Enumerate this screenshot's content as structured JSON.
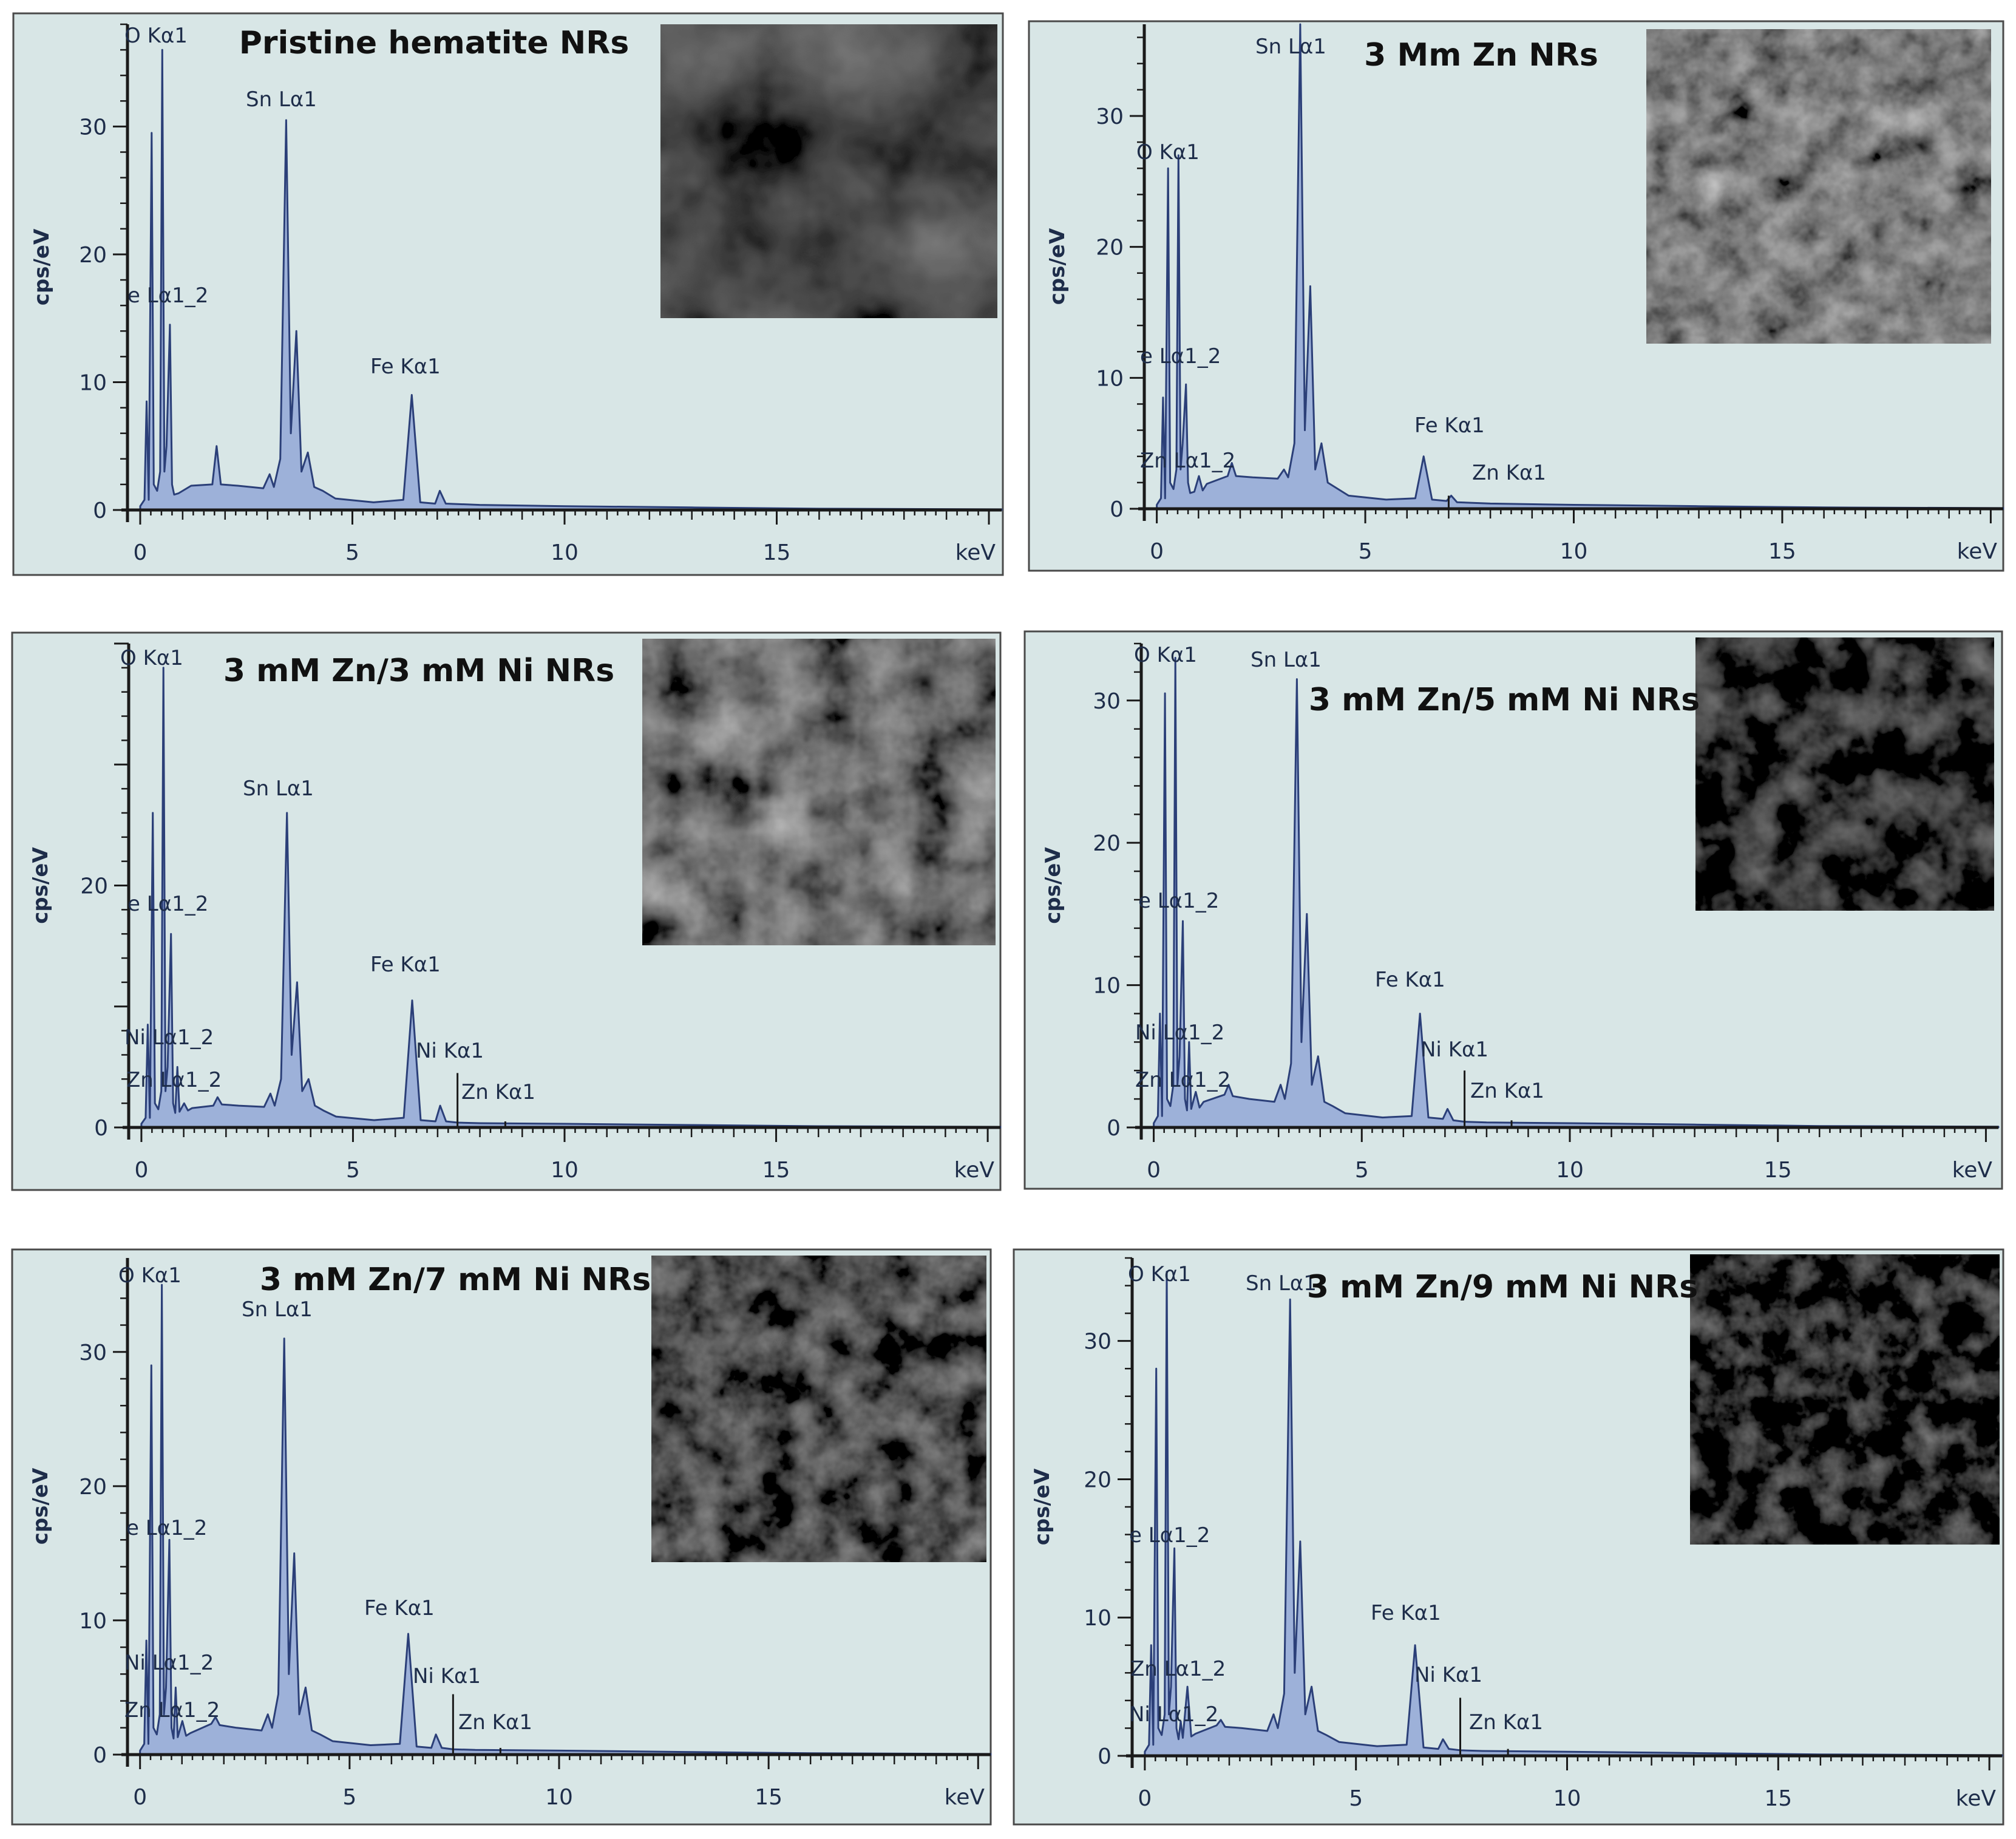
{
  "chart_data": [
    {
      "type": "area",
      "title": "Pristine hematite NRs",
      "ylabel": "cps/eV",
      "x_unit": "keV",
      "xlim": [
        -0.3,
        20.3
      ],
      "ylim": [
        0,
        38
      ],
      "xticks": [
        0,
        5,
        10,
        15
      ],
      "yticks": [
        0,
        10,
        20,
        30
      ],
      "inset": "sem-micrograph",
      "peaks": [
        {
          "label": "O Kα1",
          "energy": 0.52,
          "value": 36
        },
        {
          "label": "Sn Lα1",
          "energy": 3.44,
          "value": 30.5
        },
        {
          "label": "e Lα1_2",
          "energy": 0.7,
          "value": 14.5
        },
        {
          "label": "Fe Kα1",
          "energy": 6.4,
          "value": 9
        }
      ],
      "spectrum": {
        "energy": [
          0,
          0.1,
          0.15,
          0.2,
          0.27,
          0.32,
          0.4,
          0.47,
          0.52,
          0.57,
          0.62,
          0.7,
          0.75,
          0.8,
          0.9,
          1.2,
          1.7,
          1.8,
          1.9,
          2.3,
          2.9,
          3.05,
          3.15,
          3.3,
          3.44,
          3.55,
          3.68,
          3.8,
          3.95,
          4.1,
          4.3,
          4.6,
          5.5,
          6.2,
          6.4,
          6.6,
          6.95,
          7.06,
          7.2,
          8,
          10,
          13,
          16,
          20.3
        ],
        "counts": [
          0.3,
          0.8,
          8.5,
          0.8,
          29.5,
          2,
          1.5,
          3,
          36,
          3,
          5,
          14.5,
          2,
          1.2,
          1.3,
          1.9,
          2,
          5,
          2,
          1.9,
          1.7,
          2.8,
          1.8,
          4,
          30.5,
          6,
          14,
          3,
          4.5,
          1.8,
          1.5,
          0.9,
          0.6,
          0.8,
          9,
          0.6,
          0.5,
          1.5,
          0.5,
          0.4,
          0.3,
          0.2,
          0.1,
          0.05
        ]
      }
    },
    {
      "type": "area",
      "title": "3 Mm Zn NRs",
      "ylabel": "cps/eV",
      "x_unit": "keV",
      "xlim": [
        -0.3,
        20.3
      ],
      "ylim": [
        0,
        37
      ],
      "xticks": [
        0,
        5,
        10,
        15
      ],
      "yticks": [
        0,
        10,
        20,
        30
      ],
      "inset": "sem-micrograph",
      "peaks": [
        {
          "label": "O Kα1",
          "energy": 0.52,
          "value": 27
        },
        {
          "label": "Sn Lα1",
          "energy": 3.44,
          "value": 37
        },
        {
          "label": "e Lα1_2",
          "energy": 0.7,
          "value": 9.5
        },
        {
          "label": "Zn Lα1_2",
          "energy": 1.01,
          "value": 2.5
        },
        {
          "label": "Fe Kα1",
          "energy": 6.4,
          "value": 4
        },
        {
          "label": "Zn Kα1",
          "energy": 7.0,
          "value": 1
        }
      ],
      "spectrum": {
        "energy": [
          0,
          0.1,
          0.15,
          0.2,
          0.27,
          0.32,
          0.4,
          0.47,
          0.52,
          0.57,
          0.62,
          0.7,
          0.75,
          0.8,
          0.9,
          1.01,
          1.1,
          1.2,
          1.7,
          1.8,
          1.9,
          2.3,
          2.9,
          3.05,
          3.15,
          3.3,
          3.44,
          3.55,
          3.68,
          3.8,
          3.95,
          4.1,
          4.3,
          4.6,
          5.5,
          6.2,
          6.4,
          6.6,
          6.95,
          7.06,
          7.2,
          8,
          10,
          13,
          16,
          20.3
        ],
        "counts": [
          0.3,
          0.8,
          8.5,
          0.8,
          26,
          2,
          1.5,
          3,
          27,
          3,
          5,
          9.5,
          2,
          1.2,
          1.3,
          2.5,
          1.4,
          1.9,
          2.5,
          3.5,
          2.5,
          2.4,
          2.3,
          3,
          2.4,
          5,
          37,
          6,
          17,
          3,
          5,
          2,
          1.6,
          1,
          0.7,
          0.8,
          4,
          0.7,
          0.6,
          1,
          0.5,
          0.4,
          0.3,
          0.2,
          0.1,
          0.05
        ]
      }
    },
    {
      "type": "area",
      "title": "3 mM Zn/3 mM Ni NRs",
      "ylabel": "cps/eV",
      "x_unit": "keV",
      "xlim": [
        -0.3,
        20.3
      ],
      "ylim": [
        0,
        40
      ],
      "xticks": [
        0,
        5,
        10,
        15
      ],
      "yticks": [
        0,
        20
      ],
      "inset": "sem-micrograph",
      "peaks": [
        {
          "label": "O Kα1",
          "energy": 0.52,
          "value": 38
        },
        {
          "label": "Sn Lα1",
          "energy": 3.44,
          "value": 26
        },
        {
          "label": "e Lα1_2",
          "energy": 0.7,
          "value": 16
        },
        {
          "label": "Ni Lα1_2",
          "energy": 0.85,
          "value": 5
        },
        {
          "label": "Zn Lα1_2",
          "energy": 1.01,
          "value": 2
        },
        {
          "label": "Fe Kα1",
          "energy": 6.4,
          "value": 10.5
        },
        {
          "label": "Ni Kα1",
          "energy": 7.47,
          "value": 4.5
        },
        {
          "label": "Zn Kα1",
          "energy": 8.6,
          "value": 0.5
        }
      ],
      "spectrum": {
        "energy": [
          0,
          0.1,
          0.15,
          0.2,
          0.27,
          0.32,
          0.4,
          0.47,
          0.52,
          0.57,
          0.62,
          0.7,
          0.75,
          0.8,
          0.85,
          0.9,
          1.01,
          1.1,
          1.2,
          1.7,
          1.8,
          1.9,
          2.3,
          2.9,
          3.05,
          3.15,
          3.3,
          3.44,
          3.55,
          3.68,
          3.8,
          3.95,
          4.1,
          4.3,
          4.6,
          5.5,
          6.2,
          6.4,
          6.6,
          6.95,
          7.06,
          7.2,
          7.47,
          8,
          10,
          13,
          16,
          20.3
        ],
        "counts": [
          0.3,
          0.8,
          8.5,
          0.8,
          26,
          2,
          1.5,
          3,
          38,
          3,
          5,
          16,
          2,
          1.2,
          5,
          1.3,
          2,
          1.4,
          1.6,
          1.8,
          2.5,
          1.9,
          1.8,
          1.7,
          2.8,
          1.8,
          4,
          26,
          6,
          12,
          3,
          4,
          1.8,
          1.4,
          0.9,
          0.6,
          0.8,
          10.5,
          0.6,
          0.5,
          1.8,
          0.5,
          0.4,
          0.35,
          0.3,
          0.2,
          0.1,
          0.05
        ]
      }
    },
    {
      "type": "area",
      "title": "3 mM Zn/5 mM Ni NRs",
      "ylabel": "cps/eV",
      "x_unit": "keV",
      "xlim": [
        -0.3,
        20.3
      ],
      "ylim": [
        0,
        34
      ],
      "xticks": [
        0,
        5,
        10,
        15
      ],
      "yticks": [
        0,
        10,
        20,
        30
      ],
      "inset": "sem-micrograph",
      "peaks": [
        {
          "label": "O Kα1",
          "energy": 0.52,
          "value": 33
        },
        {
          "label": "Sn Lα1",
          "energy": 3.44,
          "value": 31.5
        },
        {
          "label": "e Lα1_2",
          "energy": 0.7,
          "value": 14.5
        },
        {
          "label": "Ni Lα1_2",
          "energy": 0.85,
          "value": 6
        },
        {
          "label": "Zn Lα1_2",
          "energy": 1.01,
          "value": 2.5
        },
        {
          "label": "Fe Kα1",
          "energy": 6.4,
          "value": 8
        },
        {
          "label": "Ni Kα1",
          "energy": 7.47,
          "value": 4
        },
        {
          "label": "Zn Kα1",
          "energy": 8.6,
          "value": 0.5
        }
      ],
      "spectrum": {
        "energy": [
          0,
          0.1,
          0.15,
          0.2,
          0.27,
          0.32,
          0.4,
          0.47,
          0.52,
          0.57,
          0.62,
          0.7,
          0.75,
          0.8,
          0.85,
          0.9,
          1.01,
          1.1,
          1.2,
          1.7,
          1.8,
          1.9,
          2.3,
          2.9,
          3.05,
          3.15,
          3.3,
          3.44,
          3.55,
          3.68,
          3.8,
          3.95,
          4.1,
          4.3,
          4.6,
          5.5,
          6.2,
          6.4,
          6.6,
          6.95,
          7.06,
          7.2,
          7.47,
          8,
          10,
          13,
          16,
          20.3
        ],
        "counts": [
          0.3,
          0.8,
          8,
          0.8,
          30.5,
          2,
          1.5,
          3,
          33,
          3,
          5,
          14.5,
          2,
          1.2,
          6,
          1.3,
          2.5,
          1.4,
          1.8,
          2.3,
          3,
          2.2,
          2,
          1.8,
          3,
          2,
          4.5,
          31.5,
          6,
          15,
          3,
          5,
          1.8,
          1.5,
          1,
          0.7,
          0.8,
          8,
          0.7,
          0.6,
          1.3,
          0.5,
          0.4,
          0.35,
          0.3,
          0.2,
          0.1,
          0.05
        ]
      }
    },
    {
      "type": "area",
      "title": "3 mM Zn/7 mM Ni NRs",
      "ylabel": "cps/eV",
      "x_unit": "keV",
      "xlim": [
        -0.3,
        20.3
      ],
      "ylim": [
        0,
        37
      ],
      "xticks": [
        0,
        5,
        10,
        15
      ],
      "yticks": [
        0,
        10,
        20,
        30
      ],
      "inset": "sem-micrograph",
      "peaks": [
        {
          "label": "O Kα1",
          "energy": 0.52,
          "value": 35
        },
        {
          "label": "Sn Lα1",
          "energy": 3.44,
          "value": 31
        },
        {
          "label": "e Lα1_2",
          "energy": 0.7,
          "value": 16
        },
        {
          "label": "Ni Lα1_2",
          "energy": 0.85,
          "value": 5
        },
        {
          "label": "Zn Lα1_2",
          "energy": 1.01,
          "value": 2.5
        },
        {
          "label": "Fe Kα1",
          "energy": 6.4,
          "value": 9
        },
        {
          "label": "Ni Kα1",
          "energy": 7.47,
          "value": 4.5
        },
        {
          "label": "Zn Kα1",
          "energy": 8.6,
          "value": 0.5
        }
      ],
      "spectrum": {
        "energy": [
          0,
          0.1,
          0.15,
          0.2,
          0.27,
          0.32,
          0.4,
          0.47,
          0.52,
          0.57,
          0.62,
          0.7,
          0.75,
          0.8,
          0.85,
          0.9,
          1.01,
          1.1,
          1.2,
          1.7,
          1.8,
          1.9,
          2.3,
          2.9,
          3.05,
          3.15,
          3.3,
          3.44,
          3.55,
          3.68,
          3.8,
          3.95,
          4.1,
          4.3,
          4.6,
          5.5,
          6.2,
          6.4,
          6.6,
          6.95,
          7.06,
          7.2,
          7.47,
          8,
          10,
          13,
          16,
          20.3
        ],
        "counts": [
          0.3,
          0.8,
          8.5,
          0.8,
          29,
          2,
          1.5,
          3,
          35,
          3,
          5,
          16,
          2,
          1.2,
          5,
          1.3,
          2.5,
          1.4,
          1.6,
          2.3,
          2.8,
          2.2,
          2,
          1.8,
          3,
          2,
          4.5,
          31,
          6,
          15,
          3,
          5,
          1.8,
          1.5,
          1,
          0.7,
          0.8,
          9,
          0.6,
          0.5,
          1.5,
          0.5,
          0.4,
          0.35,
          0.3,
          0.2,
          0.1,
          0.05
        ]
      }
    },
    {
      "type": "area",
      "title": "3 mM Zn/9 mM Ni NRs",
      "ylabel": "cps/eV",
      "x_unit": "keV",
      "xlim": [
        -0.3,
        20.3
      ],
      "ylim": [
        0,
        36
      ],
      "xticks": [
        0,
        5,
        10,
        15
      ],
      "yticks": [
        0,
        10,
        20,
        30
      ],
      "inset": "sem-micrograph",
      "peaks": [
        {
          "label": "O Kα1",
          "energy": 0.52,
          "value": 35
        },
        {
          "label": "Sn Lα1",
          "energy": 3.44,
          "value": 33
        },
        {
          "label": "e Lα1_2",
          "energy": 0.7,
          "value": 15
        },
        {
          "label": "Zn Lα1_2",
          "energy": 1.01,
          "value": 5
        },
        {
          "label": "Ni Lα1_2",
          "energy": 0.85,
          "value": 2.5
        },
        {
          "label": "Fe Kα1",
          "energy": 6.4,
          "value": 8
        },
        {
          "label": "Ni Kα1",
          "energy": 7.47,
          "value": 4.2
        },
        {
          "label": "Zn Kα1",
          "energy": 8.6,
          "value": 0.5
        }
      ],
      "spectrum": {
        "energy": [
          0,
          0.1,
          0.15,
          0.2,
          0.27,
          0.32,
          0.4,
          0.47,
          0.52,
          0.57,
          0.62,
          0.7,
          0.75,
          0.8,
          0.85,
          0.9,
          1.01,
          1.1,
          1.2,
          1.7,
          1.8,
          1.9,
          2.3,
          2.9,
          3.05,
          3.15,
          3.3,
          3.44,
          3.55,
          3.68,
          3.8,
          3.95,
          4.1,
          4.3,
          4.6,
          5.5,
          6.2,
          6.4,
          6.6,
          6.95,
          7.06,
          7.2,
          7.47,
          8,
          10,
          13,
          16,
          20.3
        ],
        "counts": [
          0.3,
          0.8,
          8,
          0.8,
          28,
          2,
          1.5,
          3,
          35,
          3,
          5,
          15,
          2,
          1.2,
          2.5,
          1.3,
          5,
          1.4,
          1.6,
          2.2,
          2.6,
          2.1,
          2,
          1.8,
          3,
          2,
          4.5,
          33,
          6,
          15.5,
          3,
          5,
          1.8,
          1.5,
          1,
          0.7,
          0.8,
          8,
          0.6,
          0.5,
          1.2,
          0.5,
          0.4,
          0.35,
          0.3,
          0.2,
          0.1,
          0.05
        ]
      }
    }
  ]
}
